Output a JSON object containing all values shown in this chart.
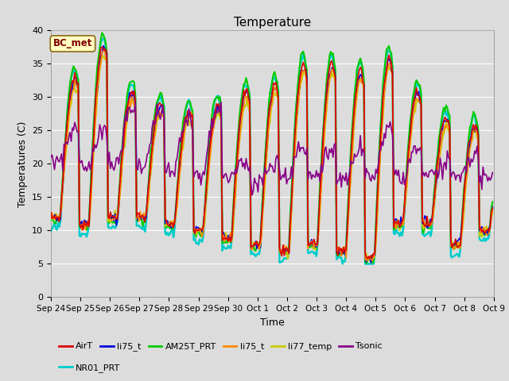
{
  "title": "Temperature",
  "xlabel": "Time",
  "ylabel": "Temperatures (C)",
  "ylim": [
    0,
    40
  ],
  "background_color": "#dcdcdc",
  "plot_bg_color": "#dcdcdc",
  "grid_color": "white",
  "annotation_text": "BC_met",
  "annotation_box_color": "#ffffc0",
  "annotation_text_color": "#800000",
  "annotation_edge_color": "#8b6914",
  "series": {
    "AirT": {
      "color": "#dd0000",
      "lw": 1.2,
      "zorder": 5
    },
    "li75_t_b": {
      "color": "#0000dd",
      "lw": 1.2,
      "zorder": 4
    },
    "AM25T_PRT": {
      "color": "#00cc00",
      "lw": 1.5,
      "zorder": 3
    },
    "li75_t_o": {
      "color": "#ff8800",
      "lw": 1.2,
      "zorder": 4
    },
    "li77_temp": {
      "color": "#cccc00",
      "lw": 1.5,
      "zorder": 3
    },
    "Tsonic": {
      "color": "#880088",
      "lw": 1.2,
      "zorder": 6
    },
    "NR01_PRT": {
      "color": "#00cccc",
      "lw": 1.8,
      "zorder": 2
    }
  },
  "xtick_labels": [
    "Sep 24",
    "Sep 25",
    "Sep 26",
    "Sep 27",
    "Sep 28",
    "Sep 29",
    "Sep 30",
    "Oct 1",
    "Oct 2",
    "Oct 3",
    "Oct 4",
    "Oct 5",
    "Oct 6",
    "Oct 7",
    "Oct 8",
    "Oct 9"
  ],
  "ytick_labels": [
    "0",
    "5",
    "10",
    "15",
    "20",
    "25",
    "30",
    "35",
    "40"
  ],
  "ytick_values": [
    0,
    5,
    10,
    15,
    20,
    25,
    30,
    35,
    40
  ],
  "legend_entries": [
    {
      "label": "AirT",
      "color": "#dd0000"
    },
    {
      "label": "li75_t",
      "color": "#0000dd"
    },
    {
      "label": "AM25T_PRT",
      "color": "#00cc00"
    },
    {
      "label": "li75_t",
      "color": "#ff8800"
    },
    {
      "label": "li77_temp",
      "color": "#cccc00"
    },
    {
      "label": "Tsonic",
      "color": "#880088"
    },
    {
      "label": "NR01_PRT",
      "color": "#00cccc"
    }
  ],
  "n_days": 15.5,
  "figsize": [
    6.4,
    4.8
  ],
  "dpi": 100
}
